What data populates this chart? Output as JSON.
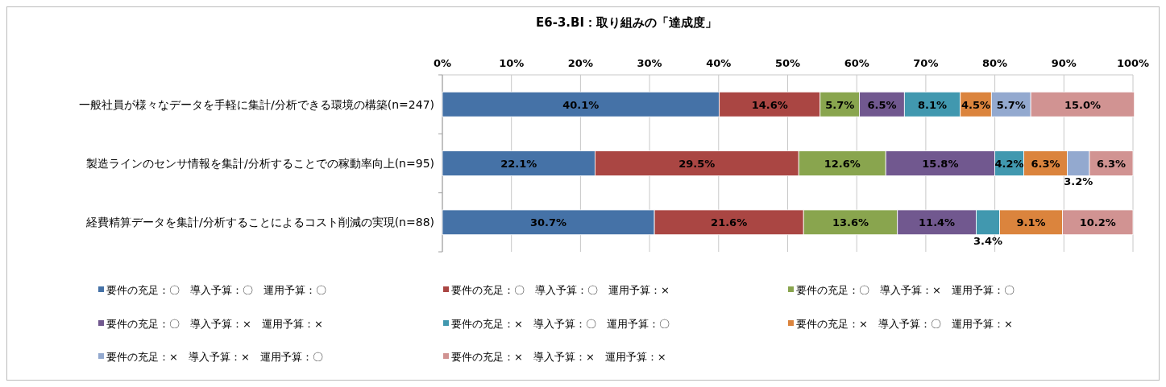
{
  "chart_data": {
    "type": "bar",
    "orientation": "horizontal",
    "stacked": true,
    "title": "E6-3.BI：取り組みの「達成度」",
    "categories": [
      "一般社員が様々なデータを手軽に集計/分析できる環境の構築(n=247)",
      "製造ラインのセンサ情報を集計/分析することでの稼動率向上(n=95)",
      "経費精算データを集計/分析することによるコスト削減の実現(n=88)"
    ],
    "xlim": [
      0,
      100
    ],
    "xticks": [
      {
        "value": 0,
        "label": "0%"
      },
      {
        "value": 10,
        "label": "10%"
      },
      {
        "value": 20,
        "label": "20%"
      },
      {
        "value": 30,
        "label": "30%"
      },
      {
        "value": 40,
        "label": "40%"
      },
      {
        "value": 50,
        "label": "50%"
      },
      {
        "value": 60,
        "label": "60%"
      },
      {
        "value": 70,
        "label": "70%"
      },
      {
        "value": 80,
        "label": "80%"
      },
      {
        "value": 90,
        "label": "90%"
      },
      {
        "value": 100,
        "label": "100%"
      }
    ],
    "grid": "x",
    "legend": "bottom",
    "series": [
      {
        "name": "要件の充足：〇　導入予算：〇　運用予算：〇",
        "color": "#4572a7",
        "values": [
          40.1,
          22.1,
          30.7
        ],
        "value_labels": [
          "40.1%",
          "22.1%",
          "30.7%"
        ]
      },
      {
        "name": "要件の充足：〇　導入予算：〇　運用予算：×",
        "color": "#aa4643",
        "values": [
          14.6,
          29.5,
          21.6
        ],
        "value_labels": [
          "14.6%",
          "29.5%",
          "21.6%"
        ]
      },
      {
        "name": "要件の充足：〇　導入予算：×　運用予算：〇",
        "color": "#89a54e",
        "values": [
          5.7,
          12.6,
          13.6
        ],
        "value_labels": [
          "5.7%",
          "12.6%",
          "13.6%"
        ]
      },
      {
        "name": "要件の充足：〇　導入予算：×　運用予算：×",
        "color": "#71588f",
        "values": [
          6.5,
          15.8,
          11.4
        ],
        "value_labels": [
          "6.5%",
          "15.8%",
          "11.4%"
        ]
      },
      {
        "name": "要件の充足：×　導入予算：〇　運用予算：〇",
        "color": "#4198af",
        "values": [
          8.1,
          4.2,
          3.4
        ],
        "value_labels": [
          "8.1%",
          "4.2%",
          "3.4%"
        ]
      },
      {
        "name": "要件の充足：×　導入予算：〇　運用予算：×",
        "color": "#db843d",
        "values": [
          4.5,
          6.3,
          9.1
        ],
        "value_labels": [
          "4.5%",
          "6.3%",
          "9.1%"
        ]
      },
      {
        "name": "要件の充足：×　導入予算：×　運用予算：〇",
        "color": "#93a9cf",
        "values": [
          5.7,
          3.2,
          null
        ],
        "value_labels": [
          "5.7%",
          "3.2%",
          null
        ]
      },
      {
        "name": "要件の充足：×　導入予算：×　運用予算：×",
        "color": "#d19392",
        "values": [
          15.0,
          6.3,
          10.2
        ],
        "value_labels": [
          "15.0%",
          "6.3%",
          "10.2%"
        ]
      }
    ]
  }
}
